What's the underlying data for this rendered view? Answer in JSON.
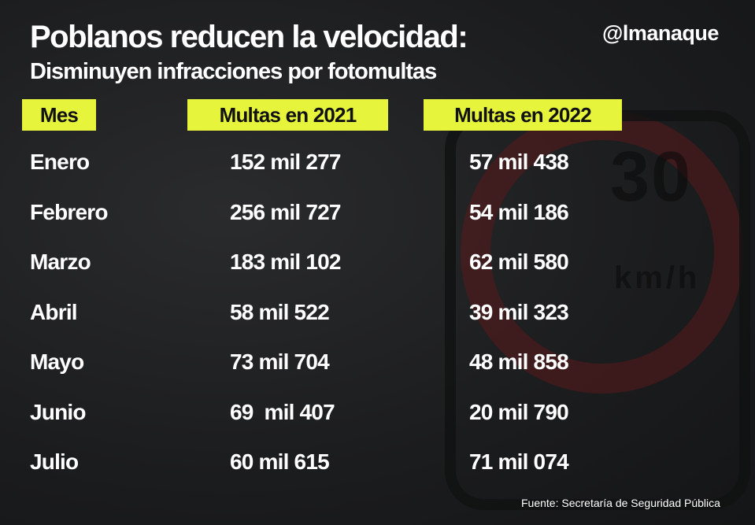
{
  "title": "Poblanos reducen la velocidad:",
  "subtitle": "Disminuyen infracciones por fotomultas",
  "brand": "@lmanaque",
  "source": "Fuente:  Secretaría de Seguridad Pública",
  "background_sign": {
    "speed": "30",
    "unit": "km/h"
  },
  "colors": {
    "header_bg": "#e6f53c",
    "text": "#ffffff",
    "background": "#1b1c1e"
  },
  "chart_data": {
    "type": "table",
    "columns": [
      "Mes",
      "Multas en 2021",
      "Multas en 2022"
    ],
    "rows": [
      [
        "Enero",
        "152 mil 277",
        "57 mil 438"
      ],
      [
        "Febrero",
        "256 mil 727",
        "54 mil 186"
      ],
      [
        "Marzo",
        "183 mil 102",
        "62 mil 580"
      ],
      [
        "Abril",
        "58 mil 522",
        "39 mil 323"
      ],
      [
        "Mayo",
        "73 mil 704",
        "48 mil 858"
      ],
      [
        "Junio",
        "69  mil 407",
        "20 mil 790"
      ],
      [
        "Julio",
        "60 mil 615",
        "71 mil 074"
      ]
    ]
  }
}
